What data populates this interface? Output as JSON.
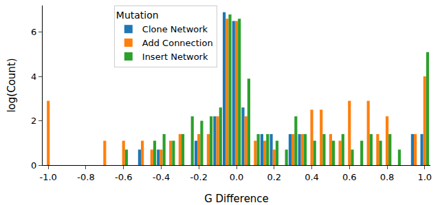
{
  "chart_data": {
    "type": "bar",
    "x_label": "G Difference",
    "y_label": "log(Count)",
    "legend_title": "Mutation",
    "legend": "upper center",
    "grid": false,
    "x": [
      -1.0,
      -0.7,
      -0.6,
      -0.5,
      -0.45,
      -0.4,
      -0.35,
      -0.3,
      -0.25,
      -0.2,
      -0.15,
      -0.1,
      -0.05,
      0.0,
      0.05,
      0.1,
      0.15,
      0.2,
      0.25,
      0.3,
      0.35,
      0.4,
      0.45,
      0.5,
      0.55,
      0.6,
      0.65,
      0.7,
      0.75,
      0.8,
      0.85,
      0.95,
      1.0
    ],
    "series": [
      {
        "name": "Clone Network",
        "color": "#1f77b4",
        "values": [
          0,
          0,
          0,
          0.7,
          0,
          0.7,
          0,
          0,
          0,
          1.1,
          0,
          2.2,
          6.9,
          6.5,
          2.6,
          0,
          1.4,
          1.4,
          0,
          1.4,
          1.4,
          0,
          0,
          0,
          0,
          0,
          0,
          0,
          0,
          0,
          0,
          1.4,
          1.4
        ]
      },
      {
        "name": "Add Connection",
        "color": "#ff7f0e",
        "values": [
          2.9,
          1.1,
          1.1,
          1.1,
          0.7,
          0.7,
          1.1,
          1.4,
          0,
          1.4,
          1.4,
          2.2,
          6.6,
          6.5,
          2.2,
          1.1,
          1.1,
          0.7,
          0,
          1.4,
          1.4,
          2.5,
          2.5,
          1.4,
          1.1,
          2.9,
          0,
          2.9,
          1.4,
          2.2,
          0,
          1.4,
          4.0
        ]
      },
      {
        "name": "Insert Network",
        "color": "#2ca02c",
        "values": [
          0,
          0,
          0.7,
          0,
          1.1,
          1.4,
          1.1,
          1.4,
          2.2,
          2.0,
          2.2,
          2.6,
          6.8,
          6.6,
          3.9,
          1.4,
          1.4,
          1.1,
          0.7,
          2.2,
          1.4,
          1.1,
          1.4,
          1.1,
          1.4,
          0.7,
          1.1,
          1.4,
          1.1,
          1.4,
          0.7,
          0,
          5.1
        ]
      }
    ],
    "xlim": [
      -1.03,
      1.03
    ],
    "xticks": [
      {
        "value": -1.0,
        "label": "-1.0"
      },
      {
        "value": -0.8,
        "label": "-0.8"
      },
      {
        "value": -0.6,
        "label": "-0.6"
      },
      {
        "value": -0.4,
        "label": "-0.4"
      },
      {
        "value": -0.2,
        "label": "-0.2"
      },
      {
        "value": 0.0,
        "label": "0.0"
      },
      {
        "value": 0.2,
        "label": "0.2"
      },
      {
        "value": 0.4,
        "label": "0.4"
      },
      {
        "value": 0.6,
        "label": "0.6"
      },
      {
        "value": 0.8,
        "label": "0.8"
      },
      {
        "value": 1.0,
        "label": "1.0"
      }
    ],
    "ylim": [
      0,
      7.2
    ],
    "yticks": [
      0,
      2,
      4,
      6
    ]
  }
}
